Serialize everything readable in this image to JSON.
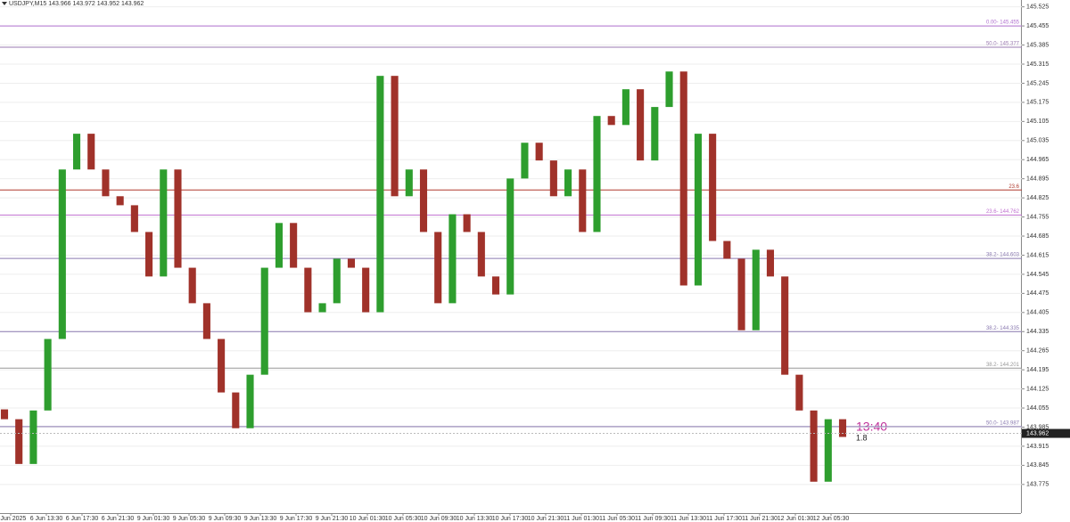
{
  "chart_data": {
    "type": "candlestick",
    "title": "USDJPY,M15 143.966 143.972 143.952 143.962",
    "x_labels": [
      "6 Jun 2025",
      "6 Jun 13:30",
      "6 Jun 17:30",
      "6 Jun 21:30",
      "9 Jun 01:30",
      "9 Jun 05:30",
      "9 Jun 09:30",
      "9 Jun 13:30",
      "9 Jun 17:30",
      "9 Jun 21:30",
      "10 Jun 01:30",
      "10 Jun 05:30",
      "10 Jun 09:30",
      "10 Jun 13:30",
      "10 Jun 17:30",
      "10 Jun 21:30",
      "11 Jun 01:30",
      "11 Jun 05:30",
      "11 Jun 09:30",
      "11 Jun 13:30",
      "11 Jun 17:30",
      "11 Jun 21:30",
      "12 Jun 01:30",
      "12 Jun 05:30"
    ],
    "open": [
      144.05,
      144.014,
      143.85,
      144.046,
      144.308,
      144.929,
      145.06,
      144.929,
      144.831,
      144.798,
      144.7,
      144.537,
      144.929,
      144.569,
      144.439,
      144.308,
      144.112,
      143.981,
      144.177,
      144.569,
      144.733,
      144.569,
      144.406,
      144.439,
      144.602,
      144.569,
      144.406,
      145.272,
      144.831,
      144.929,
      144.7,
      144.439,
      144.765,
      144.7,
      144.537,
      144.471,
      144.896,
      145.027,
      144.962,
      144.831,
      144.929,
      144.7,
      145.125,
      145.092,
      145.223,
      144.962,
      145.158,
      145.288,
      144.504,
      145.06,
      144.667,
      144.602,
      144.34,
      144.635,
      144.537,
      144.177,
      144.046,
      143.785,
      144.014
    ],
    "close": [
      144.014,
      143.85,
      144.046,
      144.308,
      144.929,
      145.06,
      144.929,
      144.831,
      144.798,
      144.7,
      144.537,
      144.929,
      144.569,
      144.439,
      144.308,
      144.112,
      143.981,
      144.177,
      144.569,
      144.733,
      144.569,
      144.406,
      144.439,
      144.602,
      144.569,
      144.406,
      145.272,
      144.831,
      144.929,
      144.7,
      144.439,
      144.765,
      144.7,
      144.537,
      144.471,
      144.896,
      145.027,
      144.962,
      144.831,
      144.929,
      144.7,
      145.125,
      145.092,
      145.223,
      144.962,
      145.158,
      145.288,
      144.504,
      145.06,
      144.667,
      144.602,
      144.34,
      144.635,
      144.537,
      144.177,
      144.046,
      143.785,
      144.014,
      143.949
    ],
    "up_color": "#2e9e2e",
    "down_color": "#a0322a",
    "ylim": [
      143.67,
      145.55
    ],
    "yticks": [
      145.525,
      145.455,
      145.385,
      145.315,
      145.245,
      145.175,
      145.105,
      145.035,
      144.965,
      144.895,
      144.825,
      144.755,
      144.685,
      144.615,
      144.545,
      144.475,
      144.405,
      144.335,
      144.265,
      144.195,
      144.125,
      144.055,
      143.985,
      143.915,
      143.845,
      143.775
    ],
    "levels": [
      {
        "label": "0.00- 145.455",
        "value": 145.455,
        "color": "#b070d0"
      },
      {
        "label": "50.0- 145.377",
        "value": 145.377,
        "color": "#9a7ab0"
      },
      {
        "label": "23.6",
        "value": 144.854,
        "color": "#b03a2e"
      },
      {
        "label": "23.6- 144.762",
        "value": 144.762,
        "color": "#c070d0"
      },
      {
        "label": "38.2- 144.603",
        "value": 144.603,
        "color": "#8a7ab0"
      },
      {
        "label": "38.2- 144.335",
        "value": 144.335,
        "color": "#8a7ab0"
      },
      {
        "label": "38.2- 144.201",
        "value": 144.201,
        "color": "#999999"
      },
      {
        "label": "50.0- 143.987",
        "value": 143.987,
        "color": "#8a7ab0"
      }
    ],
    "last_price": 143.962,
    "timer": "13:40",
    "spread": "1.8"
  }
}
